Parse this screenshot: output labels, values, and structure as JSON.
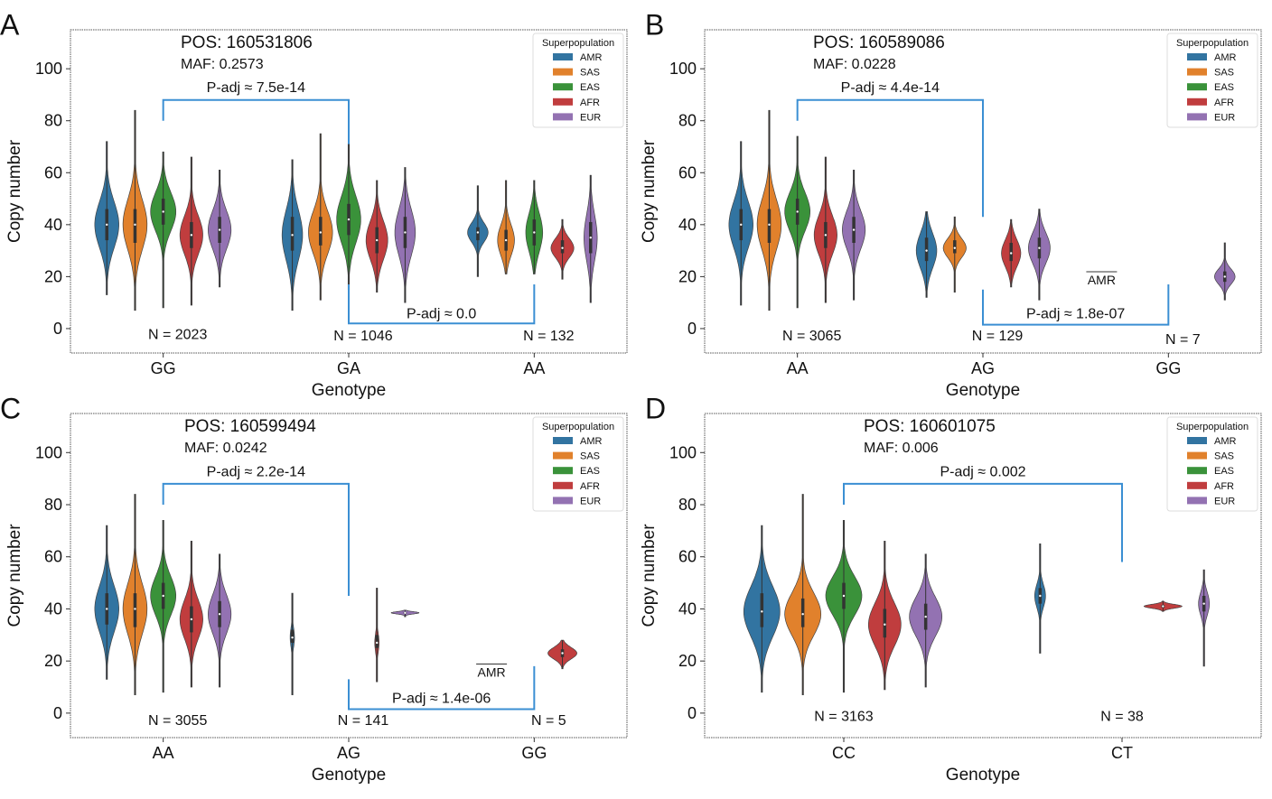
{
  "colors": {
    "AMR": "#3274a1",
    "SAS": "#e1812c",
    "EAS": "#3a923a",
    "AFR": "#c03d3e",
    "EUR": "#9372b2",
    "bracket": "#3b8fd3"
  },
  "chart_data": [
    {
      "type": "violin",
      "panel_label": "A",
      "title": "POS: 160531806",
      "subtitle": "MAF: 0.2573",
      "xlabel": "Genotype",
      "ylabel": "Copy number",
      "categories": [
        "GG",
        "GA",
        "AA"
      ],
      "ylim": [
        -9.4,
        115
      ],
      "yticks": [
        "0",
        "20",
        "40",
        "60",
        "80",
        "100"
      ],
      "grid": false,
      "legend": {
        "title": "Superpopulation",
        "placement": "top-right",
        "entries": [
          "AMR",
          "SAS",
          "EAS",
          "AFR",
          "EUR"
        ]
      },
      "violins": [
        {
          "category": "GG",
          "hue": "AMR",
          "min": 13,
          "max": 72,
          "median": 40,
          "q1": 34,
          "q3": 46,
          "width": 1.0
        },
        {
          "category": "GG",
          "hue": "SAS",
          "min": 7,
          "max": 84,
          "median": 40,
          "q1": 33,
          "q3": 46,
          "width": 1.0
        },
        {
          "category": "GG",
          "hue": "EAS",
          "min": 8,
          "max": 68,
          "median": 45,
          "q1": 40,
          "q3": 50,
          "width": 1.05
        },
        {
          "category": "GG",
          "hue": "AFR",
          "min": 9,
          "max": 66,
          "median": 36,
          "q1": 31,
          "q3": 41,
          "width": 0.95
        },
        {
          "category": "GG",
          "hue": "EUR",
          "min": 16,
          "max": 61,
          "median": 38,
          "q1": 33,
          "q3": 43,
          "width": 0.95
        },
        {
          "category": "GA",
          "hue": "AMR",
          "min": 7,
          "max": 65,
          "median": 36,
          "q1": 30,
          "q3": 43,
          "width": 0.85
        },
        {
          "category": "GA",
          "hue": "SAS",
          "min": 11,
          "max": 75,
          "median": 37,
          "q1": 32,
          "q3": 43,
          "width": 1.0
        },
        {
          "category": "GA",
          "hue": "EAS",
          "min": 15,
          "max": 71,
          "median": 42,
          "q1": 36,
          "q3": 48,
          "width": 1.0
        },
        {
          "category": "GA",
          "hue": "AFR",
          "min": 14,
          "max": 57,
          "median": 34,
          "q1": 29,
          "q3": 39,
          "width": 0.9
        },
        {
          "category": "GA",
          "hue": "EUR",
          "min": 10,
          "max": 62,
          "median": 37,
          "q1": 31,
          "q3": 43,
          "width": 0.85
        },
        {
          "category": "AA",
          "hue": "AMR",
          "min": 20,
          "max": 55,
          "median": 37,
          "q1": 34,
          "q3": 39,
          "width": 0.85
        },
        {
          "category": "AA",
          "hue": "SAS",
          "min": 21,
          "max": 57,
          "median": 34,
          "q1": 30,
          "q3": 38,
          "width": 0.7
        },
        {
          "category": "AA",
          "hue": "EAS",
          "min": 21,
          "max": 57,
          "median": 37,
          "q1": 32,
          "q3": 42,
          "width": 0.7
        },
        {
          "category": "AA",
          "hue": "AFR",
          "min": 19,
          "max": 42,
          "median": 31,
          "q1": 29,
          "q3": 34,
          "width": 0.95
        },
        {
          "category": "AA",
          "hue": "EUR",
          "min": 10,
          "max": 59,
          "median": 35,
          "q1": 29,
          "q3": 41,
          "width": 0.55
        }
      ],
      "brackets": [
        {
          "from": "GG",
          "to": "GA",
          "y": 88,
          "from_end": 80,
          "to_end": 71,
          "label": "P-adj ≈ 7.5e-14",
          "label_y": 91
        },
        {
          "from": "GA",
          "to": "AA",
          "y": 2,
          "from_end": 17,
          "to_end": 17,
          "label": "P-adj ≈ 0.0",
          "label_y": 4
        }
      ],
      "n_labels": [
        {
          "category": "GG",
          "text": "N = 2023",
          "y": -4
        },
        {
          "category": "GA",
          "text": "N = 1046",
          "y": -4.5
        },
        {
          "category": "AA",
          "text": "N = 132",
          "y": -4.5
        }
      ],
      "annotations": []
    },
    {
      "type": "violin",
      "panel_label": "B",
      "title": "POS: 160589086",
      "subtitle": "MAF: 0.0228",
      "xlabel": "Genotype",
      "ylabel": "Copy number",
      "categories": [
        "AA",
        "AG",
        "GG"
      ],
      "ylim": [
        -9.4,
        115
      ],
      "yticks": [
        "0",
        "20",
        "40",
        "60",
        "80",
        "100"
      ],
      "grid": false,
      "legend": {
        "title": "Superpopulation",
        "placement": "top-right",
        "entries": [
          "AMR",
          "SAS",
          "EAS",
          "AFR",
          "EUR"
        ]
      },
      "violins": [
        {
          "category": "AA",
          "hue": "AMR",
          "min": 9,
          "max": 72,
          "median": 40,
          "q1": 34,
          "q3": 46,
          "width": 1.0
        },
        {
          "category": "AA",
          "hue": "SAS",
          "min": 7,
          "max": 84,
          "median": 40,
          "q1": 33,
          "q3": 46,
          "width": 1.0
        },
        {
          "category": "AA",
          "hue": "EAS",
          "min": 8,
          "max": 74,
          "median": 45,
          "q1": 40,
          "q3": 50,
          "width": 1.05
        },
        {
          "category": "AA",
          "hue": "AFR",
          "min": 10,
          "max": 66,
          "median": 36,
          "q1": 31,
          "q3": 41,
          "width": 0.95
        },
        {
          "category": "AA",
          "hue": "EUR",
          "min": 11,
          "max": 61,
          "median": 38,
          "q1": 33,
          "q3": 43,
          "width": 0.95
        },
        {
          "category": "AG",
          "hue": "AMR",
          "min": 12,
          "max": 45,
          "median": 30,
          "q1": 26,
          "q3": 35,
          "width": 0.85
        },
        {
          "category": "AG",
          "hue": "SAS",
          "min": 14,
          "max": 43,
          "median": 31,
          "q1": 29,
          "q3": 34,
          "width": 0.95
        },
        {
          "category": "AG",
          "hue": "AFR",
          "min": 16,
          "max": 42,
          "median": 29,
          "q1": 26,
          "q3": 33,
          "width": 0.8
        },
        {
          "category": "AG",
          "hue": "EUR",
          "min": 11,
          "max": 46,
          "median": 31,
          "q1": 27,
          "q3": 35,
          "width": 0.9
        },
        {
          "category": "GG",
          "hue": "EUR",
          "min": 11,
          "max": 33,
          "median": 20,
          "q1": 18,
          "q3": 22,
          "width": 0.85
        }
      ],
      "brackets": [
        {
          "from": "AA",
          "to": "AG",
          "y": 88,
          "from_end": 80,
          "to_end": 43,
          "label": "P-adj ≈ 4.4e-14",
          "label_y": 91
        },
        {
          "from": "AG",
          "to": "GG",
          "y": 1.5,
          "from_end": 15,
          "to_end": 17,
          "label": "P-adj ≈ 1.8e-07",
          "label_y": 4
        }
      ],
      "n_labels": [
        {
          "category": "AA",
          "text": "N = 3065",
          "y": -4.5
        },
        {
          "category": "AG",
          "text": "N = 129",
          "y": -4.5
        },
        {
          "category": "GG",
          "text": "N = 7",
          "y": -6
        }
      ],
      "annotations": [
        {
          "text": "AMR",
          "overline": true,
          "x": 1.64,
          "y": 17
        }
      ]
    },
    {
      "type": "violin",
      "panel_label": "C",
      "title": "POS: 160599494",
      "subtitle": "MAF: 0.0242",
      "xlabel": "Genotype",
      "ylabel": "Copy number",
      "categories": [
        "AA",
        "AG",
        "GG"
      ],
      "ylim": [
        -9.4,
        115
      ],
      "yticks": [
        "0",
        "20",
        "40",
        "60",
        "80",
        "100"
      ],
      "grid": false,
      "legend": {
        "title": "Superpopulation",
        "placement": "top-right",
        "entries": [
          "AMR",
          "SAS",
          "EAS",
          "AFR",
          "EUR"
        ]
      },
      "violins": [
        {
          "category": "AA",
          "hue": "AMR",
          "min": 13,
          "max": 72,
          "median": 40,
          "q1": 34,
          "q3": 46,
          "width": 1.0
        },
        {
          "category": "AA",
          "hue": "SAS",
          "min": 7,
          "max": 84,
          "median": 40,
          "q1": 33,
          "q3": 46,
          "width": 1.0
        },
        {
          "category": "AA",
          "hue": "EAS",
          "min": 8,
          "max": 74,
          "median": 45,
          "q1": 40,
          "q3": 50,
          "width": 1.05
        },
        {
          "category": "AA",
          "hue": "AFR",
          "min": 10,
          "max": 66,
          "median": 36,
          "q1": 31,
          "q3": 41,
          "width": 0.95
        },
        {
          "category": "AA",
          "hue": "EUR",
          "min": 10,
          "max": 61,
          "median": 38,
          "q1": 33,
          "q3": 43,
          "width": 0.95
        },
        {
          "category": "AG",
          "hue": "AMR",
          "min": 7,
          "max": 46,
          "median": 29,
          "q1": 27,
          "q3": 32,
          "width": 0.18
        },
        {
          "category": "AG",
          "hue": "AFR",
          "min": 12,
          "max": 48,
          "median": 27,
          "q1": 25,
          "q3": 30,
          "width": 0.18
        },
        {
          "category": "AG",
          "hue": "EUR",
          "min": 37,
          "max": 39.5,
          "median": 38.5,
          "q1": 38.2,
          "q3": 38.8,
          "width": 1.15
        },
        {
          "category": "GG",
          "hue": "AFR",
          "min": 17,
          "max": 28,
          "median": 23,
          "q1": 21.5,
          "q3": 24.5,
          "width": 1.2
        }
      ],
      "brackets": [
        {
          "from": "AA",
          "to": "AG",
          "y": 88,
          "from_end": 80,
          "to_end": 45,
          "label": "P-adj ≈ 2.2e-14",
          "label_y": 91
        },
        {
          "from": "AG",
          "to": "GG",
          "y": 1.5,
          "from_end": 13,
          "to_end": 18,
          "label": "P-adj ≈ 1.4e-06",
          "label_y": 4
        }
      ],
      "n_labels": [
        {
          "category": "AA",
          "text": "N = 3055",
          "y": -4.5
        },
        {
          "category": "AG",
          "text": "N = 141",
          "y": -4.5
        },
        {
          "category": "GG",
          "text": "N = 5",
          "y": -4.5
        }
      ],
      "annotations": [
        {
          "text": "AMR",
          "overline": true,
          "x": 1.77,
          "y": 14
        }
      ]
    },
    {
      "type": "violin",
      "panel_label": "D",
      "title": "POS: 160601075",
      "subtitle": "MAF: 0.006",
      "xlabel": "Genotype",
      "ylabel": "Copy number",
      "categories": [
        "CC",
        "CT"
      ],
      "ylim": [
        -9.4,
        115
      ],
      "yticks": [
        "0",
        "20",
        "40",
        "60",
        "80",
        "100"
      ],
      "grid": false,
      "legend": {
        "title": "Superpopulation",
        "placement": "top-right",
        "entries": [
          "AMR",
          "SAS",
          "EAS",
          "AFR",
          "EUR"
        ]
      },
      "violins": [
        {
          "category": "CC",
          "hue": "AMR",
          "min": 8,
          "max": 72,
          "median": 39,
          "q1": 33,
          "q3": 46,
          "width": 1.0
        },
        {
          "category": "CC",
          "hue": "SAS",
          "min": 7,
          "max": 84,
          "median": 38,
          "q1": 33,
          "q3": 44,
          "width": 1.0
        },
        {
          "category": "CC",
          "hue": "EAS",
          "min": 8,
          "max": 74,
          "median": 45,
          "q1": 40,
          "q3": 50,
          "width": 1.0
        },
        {
          "category": "CC",
          "hue": "AFR",
          "min": 9,
          "max": 66,
          "median": 34,
          "q1": 29,
          "q3": 40,
          "width": 0.9
        },
        {
          "category": "CC",
          "hue": "EUR",
          "min": 10,
          "max": 61,
          "median": 37,
          "q1": 32,
          "q3": 42,
          "width": 0.9
        },
        {
          "category": "CT",
          "hue": "AMR",
          "min": 23,
          "max": 65,
          "median": 45,
          "q1": 42,
          "q3": 48,
          "width": 0.3
        },
        {
          "category": "CT",
          "hue": "AFR",
          "min": 39,
          "max": 43,
          "median": 41,
          "q1": 40.5,
          "q3": 41.5,
          "width": 1.05
        },
        {
          "category": "CT",
          "hue": "EUR",
          "min": 18,
          "max": 55,
          "median": 42,
          "q1": 39,
          "q3": 45,
          "width": 0.3
        }
      ],
      "brackets": [
        {
          "from": "CC",
          "to": "CT",
          "y": 88,
          "from_end": 80,
          "to_end": 58,
          "label": "P-adj ≈ 0.002",
          "label_y": 91
        }
      ],
      "n_labels": [
        {
          "category": "CC",
          "text": "N = 3163",
          "y": -3
        },
        {
          "category": "CT",
          "text": "N = 38",
          "y": -3
        }
      ],
      "annotations": []
    }
  ]
}
